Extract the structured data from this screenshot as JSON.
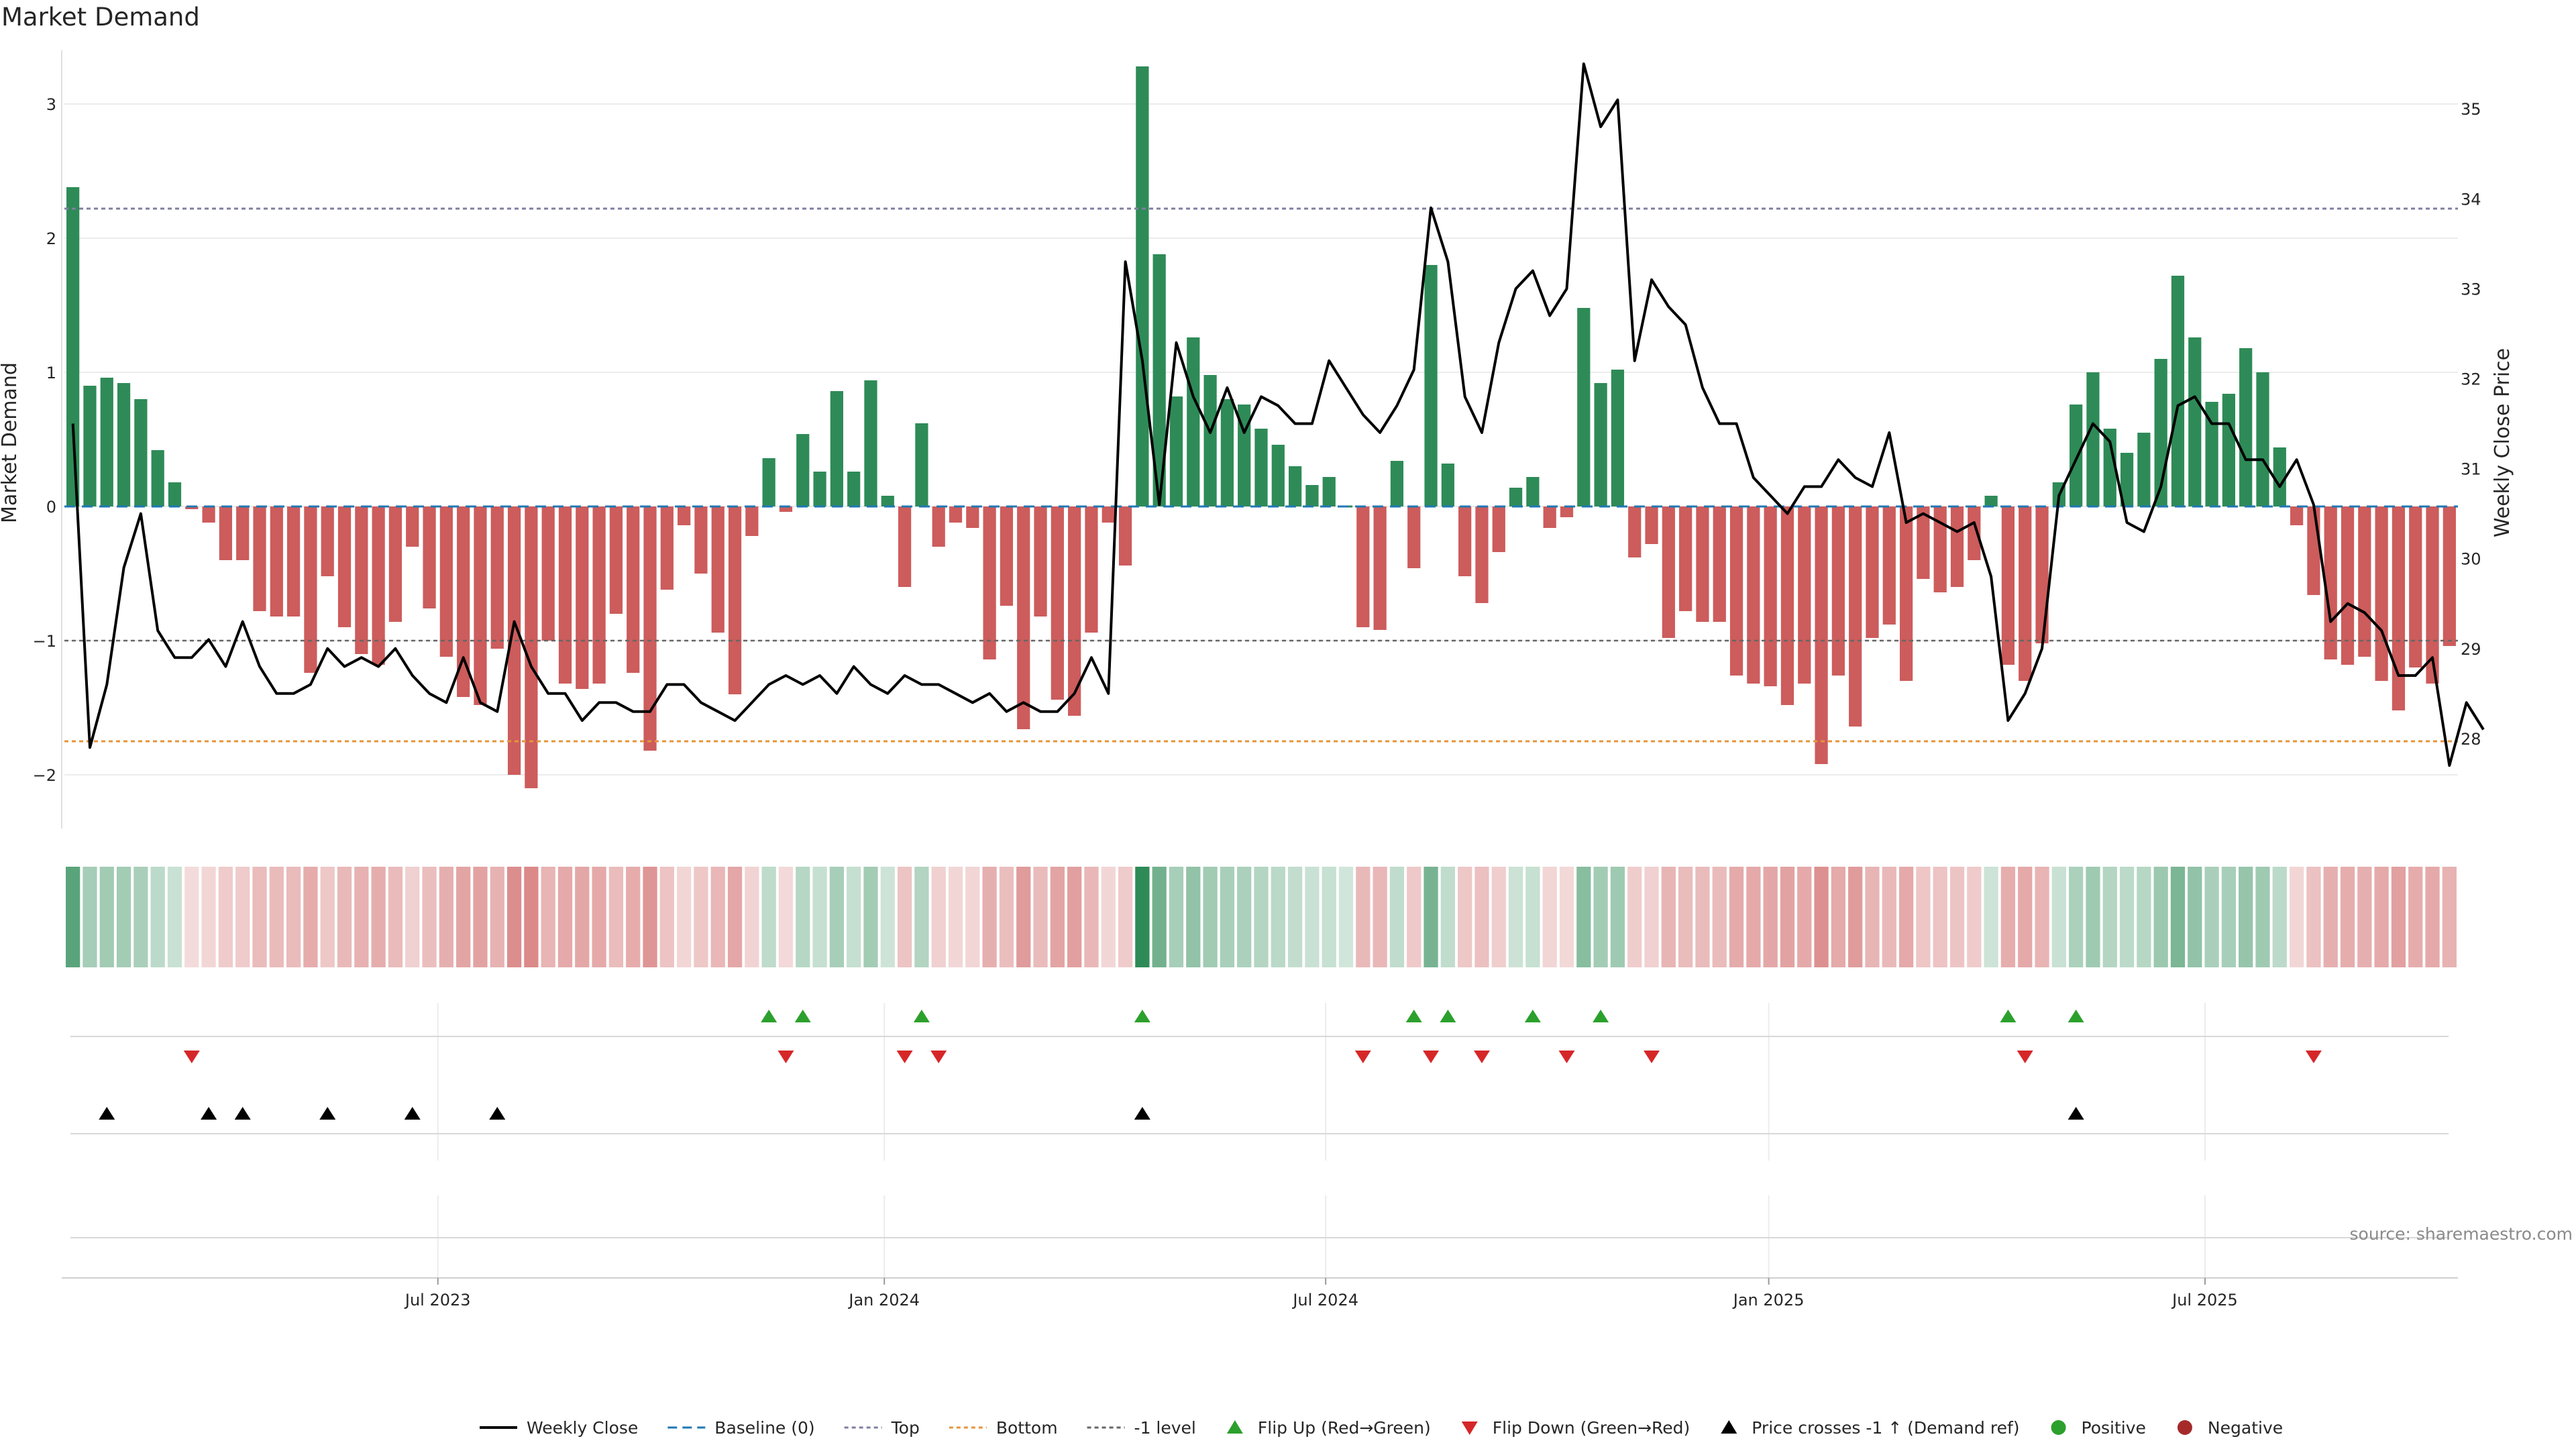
{
  "chart_data": {
    "type": "bar",
    "title": "Market Demand",
    "ylabel": "Market Demand",
    "y2label": "Weekly Close Price",
    "ylim": [
      -2.4,
      3.4
    ],
    "y_ticks": [
      -2,
      -1,
      0,
      1,
      2,
      3
    ],
    "y_tick_labels": [
      "−2",
      "−1",
      "0",
      "1",
      "2",
      "3"
    ],
    "y2lim": [
      27.0,
      35.65
    ],
    "y2_ticks": [
      28,
      29,
      30,
      31,
      32,
      33,
      34,
      35
    ],
    "y2_tick_labels": [
      "28",
      "29",
      "30",
      "31",
      "32",
      "33",
      "34",
      "35"
    ],
    "x_ticks": [
      "Jul 2023",
      "Jan 2024",
      "Jul 2024",
      "Jan 2025",
      "Jul 2025"
    ],
    "x_tick_week_index": [
      22,
      48.3,
      74.3,
      100.4,
      126.1
    ],
    "grid": true,
    "reference_lines": {
      "baseline": 0,
      "top": 2.22,
      "bottom": -1.75,
      "minus_one": -1
    },
    "demand": [
      2.38,
      0.9,
      0.96,
      0.92,
      0.8,
      0.42,
      0.18,
      -0.02,
      -0.12,
      -0.4,
      -0.4,
      -0.78,
      -0.82,
      -0.82,
      -1.24,
      -0.52,
      -0.9,
      -1.1,
      -1.18,
      -0.86,
      -0.3,
      -0.76,
      -1.12,
      -1.42,
      -1.48,
      -1.06,
      -2.0,
      -2.1,
      -1.0,
      -1.32,
      -1.36,
      -1.32,
      -0.8,
      -1.24,
      -1.82,
      -0.62,
      -0.14,
      -0.5,
      -0.94,
      -1.4,
      -0.22,
      0.36,
      -0.04,
      0.54,
      0.26,
      0.86,
      0.26,
      0.94,
      0.08,
      -0.6,
      0.62,
      -0.3,
      -0.12,
      -0.16,
      -1.14,
      -0.74,
      -1.66,
      -0.82,
      -1.44,
      -1.56,
      -0.94,
      -0.12,
      -0.44,
      3.28,
      1.88,
      0.82,
      1.26,
      0.98,
      0.8,
      0.76,
      0.58,
      0.46,
      0.3,
      0.16,
      0.22,
      0.0,
      -0.9,
      -0.92,
      0.34,
      -0.46,
      1.8,
      0.32,
      -0.52,
      -0.72,
      -0.34,
      0.14,
      0.22,
      -0.16,
      -0.08,
      1.48,
      0.92,
      1.02,
      -0.38,
      -0.28,
      -0.98,
      -0.78,
      -0.86,
      -0.86,
      -1.26,
      -1.32,
      -1.34,
      -1.48,
      -1.32,
      -1.92,
      -1.26,
      -1.64,
      -0.98,
      -0.88,
      -1.3,
      -0.54,
      -0.64,
      -0.6,
      -0.4,
      0.08,
      -1.18,
      -1.3,
      -1.02,
      0.18,
      0.76,
      1.0,
      0.58,
      0.4,
      0.55,
      1.1,
      1.72,
      1.26,
      0.78,
      0.84,
      1.18,
      1.0,
      0.44,
      -0.14,
      -0.66,
      -1.14,
      -1.18,
      -1.12,
      -1.3,
      -1.52,
      -1.2,
      -1.32,
      -1.04
    ],
    "weekly_close": [
      31.5,
      27.9,
      28.6,
      29.9,
      30.5,
      29.2,
      28.9,
      28.9,
      29.1,
      28.8,
      29.3,
      28.8,
      28.5,
      28.5,
      28.6,
      29.0,
      28.8,
      28.9,
      28.8,
      29.0,
      28.7,
      28.5,
      28.4,
      28.9,
      28.4,
      28.3,
      29.3,
      28.8,
      28.5,
      28.5,
      28.2,
      28.4,
      28.4,
      28.3,
      28.3,
      28.6,
      28.6,
      28.4,
      28.3,
      28.2,
      28.4,
      28.6,
      28.7,
      28.6,
      28.7,
      28.5,
      28.8,
      28.6,
      28.5,
      28.7,
      28.6,
      28.6,
      28.5,
      28.4,
      28.5,
      28.3,
      28.4,
      28.3,
      28.3,
      28.5,
      28.9,
      28.5,
      33.3,
      32.2,
      30.6,
      32.4,
      31.8,
      31.4,
      31.9,
      31.4,
      31.8,
      31.7,
      31.5,
      31.5,
      32.2,
      31.9,
      31.6,
      31.4,
      31.7,
      32.1,
      33.9,
      33.3,
      31.8,
      31.4,
      32.4,
      33.0,
      33.2,
      32.7,
      33.0,
      35.5,
      34.8,
      35.1,
      32.2,
      33.1,
      32.8,
      32.6,
      31.9,
      31.5,
      31.5,
      30.9,
      30.7,
      30.5,
      30.8,
      30.8,
      31.1,
      30.9,
      30.8,
      31.4,
      30.4,
      30.5,
      30.4,
      30.3,
      30.4,
      29.8,
      28.2,
      28.5,
      29.0,
      30.7,
      31.1,
      31.5,
      31.3,
      30.4,
      30.3,
      30.8,
      31.7,
      31.8,
      31.5,
      31.5,
      31.1,
      31.1,
      30.8,
      31.1,
      30.6,
      29.3,
      29.5,
      29.4,
      29.2,
      28.7,
      28.7,
      28.9,
      27.7,
      28.4,
      28.1
    ],
    "flip_up_weeks": [
      41,
      43,
      50,
      63,
      79,
      81,
      86,
      90,
      114,
      118
    ],
    "flip_down_weeks": [
      7,
      42,
      49,
      51,
      76,
      80,
      83,
      88,
      93,
      115,
      132
    ],
    "price_crosses_weeks": [
      2,
      8,
      10,
      15,
      20,
      25,
      63,
      118
    ],
    "source": "source: sharemaestro.com",
    "colors": {
      "positive_bar": "#2e8b57",
      "negative_bar": "#cd5c5c",
      "price_line": "#000000",
      "baseline": "#1f77b4",
      "top": "#7f7fa0",
      "bottom": "#e5953a",
      "minus_one": "#666666",
      "flip_up": "#2ca02c",
      "flip_down": "#d62728",
      "price_cross": "#000000",
      "positive_dot": "#2ca02c",
      "negative_dot": "#a52a2a"
    },
    "legend": [
      {
        "label": "Weekly Close",
        "icon": "line-solid"
      },
      {
        "label": "Baseline (0)",
        "icon": "line-dashed-blue"
      },
      {
        "label": "Top",
        "icon": "line-dotted-gray"
      },
      {
        "label": "Bottom",
        "icon": "line-dotted-orange"
      },
      {
        "label": "-1 level",
        "icon": "line-dashed-gray"
      },
      {
        "label": "Flip Up (Red→Green)",
        "icon": "triangle-up-green"
      },
      {
        "label": "Flip Down (Green→Red)",
        "icon": "triangle-down-red"
      },
      {
        "label": "Price crosses -1 ↑ (Demand ref)",
        "icon": "triangle-up-black"
      },
      {
        "label": "Positive",
        "icon": "dot-green"
      },
      {
        "label": "Negative",
        "icon": "dot-red"
      }
    ],
    "legend_position": "bottom-center"
  }
}
